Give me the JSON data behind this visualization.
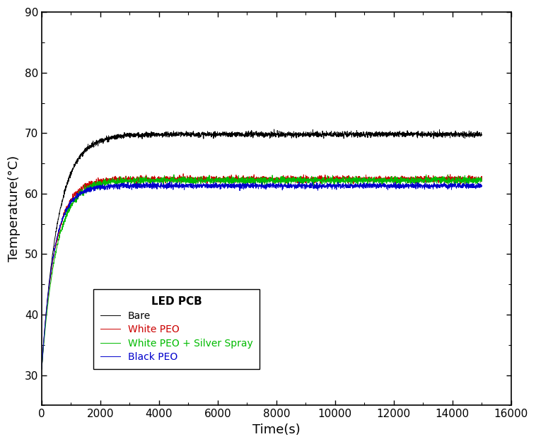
{
  "title": "",
  "xlabel": "Time(s)",
  "ylabel": "Temperature(°C)",
  "xlim": [
    0,
    16000
  ],
  "ylim": [
    25,
    90
  ],
  "xticks": [
    0,
    2000,
    4000,
    6000,
    8000,
    10000,
    12000,
    14000,
    16000
  ],
  "yticks": [
    30,
    40,
    50,
    60,
    70,
    80,
    90
  ],
  "series": [
    {
      "label": "Bare",
      "color": "#000000",
      "steady_state": 69.8,
      "rise_rate": 0.0018,
      "noise": 0.22,
      "start_temp": 31.0
    },
    {
      "label": "White PEO",
      "color": "#cc0000",
      "steady_state": 62.4,
      "rise_rate": 0.0022,
      "noise": 0.25,
      "start_temp": 31.0
    },
    {
      "label": "White PEO + Silver Spray",
      "color": "#00bb00",
      "steady_state": 62.2,
      "rise_rate": 0.002,
      "noise": 0.28,
      "start_temp": 31.0
    },
    {
      "label": "Black PEO",
      "color": "#0000cc",
      "steady_state": 61.3,
      "rise_rate": 0.0024,
      "noise": 0.22,
      "start_temp": 31.0
    }
  ],
  "legend_title": "LED PCB",
  "bg_color": "#ffffff",
  "time_end": 15000,
  "time_steps": 3000,
  "figsize": [
    7.58,
    6.28
  ],
  "dpi": 100
}
